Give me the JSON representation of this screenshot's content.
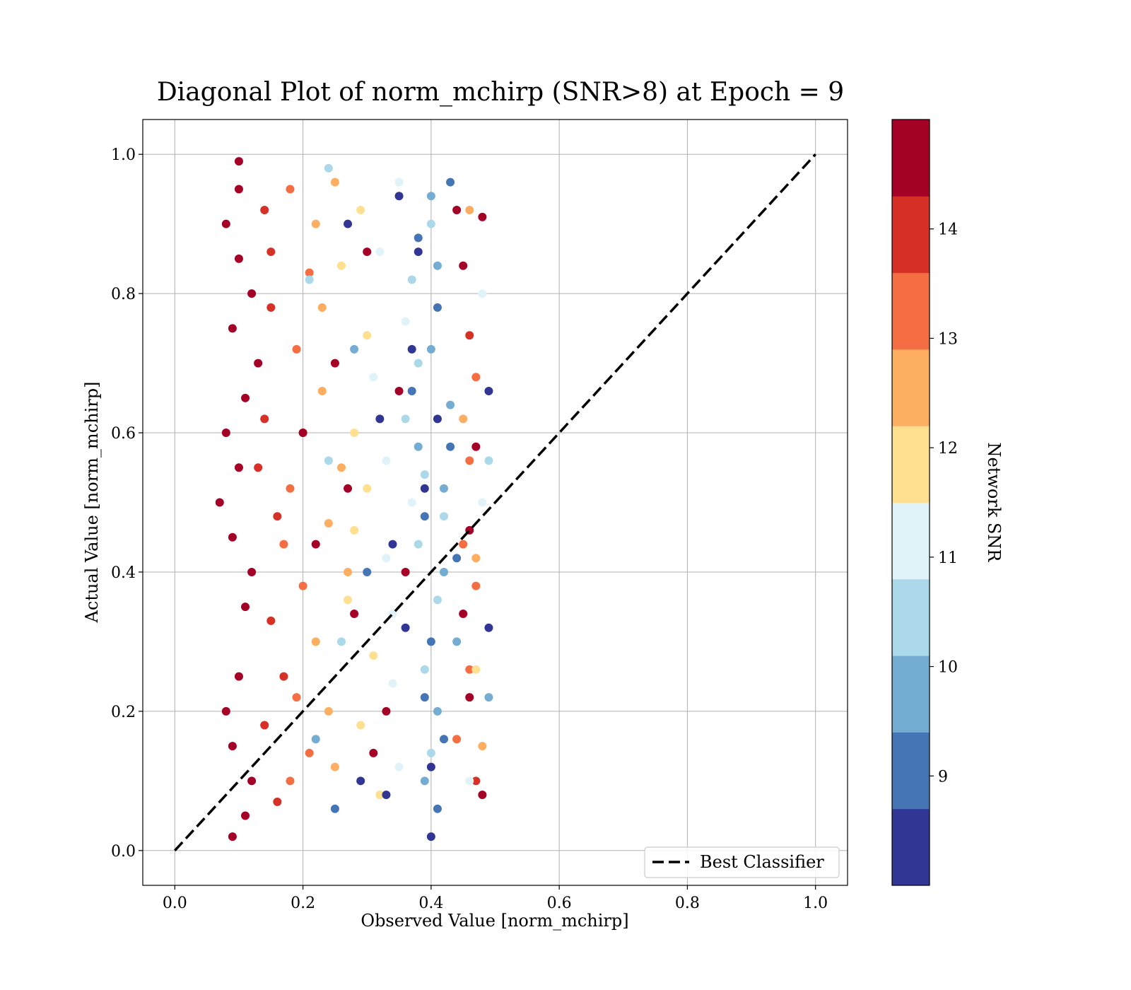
{
  "chart_data": {
    "type": "scatter",
    "title": "Diagonal Plot of norm_mchirp (SNR>8) at Epoch = 9",
    "xlabel": "Observed Value [norm_mchirp]",
    "ylabel": "Actual Value [norm_mchirp]",
    "xlim": [
      -0.05,
      1.05
    ],
    "ylim": [
      -0.05,
      1.05
    ],
    "x_ticks": [
      0.0,
      0.2,
      0.4,
      0.6,
      0.8,
      1.0
    ],
    "y_ticks": [
      0.0,
      0.2,
      0.4,
      0.6,
      0.8,
      1.0
    ],
    "x_tick_labels": [
      "0.0",
      "0.2",
      "0.4",
      "0.6",
      "0.8",
      "1.0"
    ],
    "y_tick_labels": [
      "0.0",
      "0.2",
      "0.4",
      "0.6",
      "0.8",
      "1.0"
    ],
    "grid": true,
    "legend": {
      "placement": "lower-right",
      "entries": [
        "Best Classifier"
      ]
    },
    "reference_line": {
      "name": "Best Classifier",
      "style": "dashed",
      "color": "#000000",
      "x": [
        0.0,
        1.0
      ],
      "y": [
        0.0,
        1.0
      ]
    },
    "colorbar": {
      "label": "Network SNR",
      "range": [
        8.0,
        15.0
      ],
      "ticks": [
        9,
        10,
        11,
        12,
        13,
        14
      ],
      "tick_labels": [
        "9",
        "10",
        "11",
        "12",
        "13",
        "14"
      ],
      "bins": [
        {
          "from": 8.0,
          "to": 8.7,
          "color": "#313695"
        },
        {
          "from": 8.7,
          "to": 9.4,
          "color": "#4575b4"
        },
        {
          "from": 9.4,
          "to": 10.1,
          "color": "#74add1"
        },
        {
          "from": 10.1,
          "to": 10.8,
          "color": "#abd9e9"
        },
        {
          "from": 10.8,
          "to": 11.5,
          "color": "#e0f3f8"
        },
        {
          "from": 11.5,
          "to": 12.2,
          "color": "#fee090"
        },
        {
          "from": 12.2,
          "to": 12.9,
          "color": "#fdae61"
        },
        {
          "from": 12.9,
          "to": 13.6,
          "color": "#f46d43"
        },
        {
          "from": 13.6,
          "to": 14.3,
          "color": "#d73027"
        },
        {
          "from": 14.3,
          "to": 15.0,
          "color": "#a50026"
        }
      ]
    },
    "scatter_points": [
      [
        0.1,
        0.95,
        15.0
      ],
      [
        0.1,
        0.85,
        15.0
      ],
      [
        0.09,
        0.75,
        15.0
      ],
      [
        0.11,
        0.65,
        15.0
      ],
      [
        0.1,
        0.55,
        15.0
      ],
      [
        0.09,
        0.45,
        15.0
      ],
      [
        0.11,
        0.35,
        15.0
      ],
      [
        0.1,
        0.25,
        15.0
      ],
      [
        0.09,
        0.15,
        15.0
      ],
      [
        0.11,
        0.05,
        15.0
      ],
      [
        0.08,
        0.9,
        15.0
      ],
      [
        0.12,
        0.8,
        15.0
      ],
      [
        0.08,
        0.6,
        15.0
      ],
      [
        0.12,
        0.4,
        15.0
      ],
      [
        0.08,
        0.2,
        15.0
      ],
      [
        0.12,
        0.1,
        14.8
      ],
      [
        0.09,
        0.02,
        14.9
      ],
      [
        0.1,
        0.99,
        14.7
      ],
      [
        0.07,
        0.5,
        15.0
      ],
      [
        0.13,
        0.7,
        14.6
      ],
      [
        0.14,
        0.92,
        14.0
      ],
      [
        0.15,
        0.78,
        14.0
      ],
      [
        0.14,
        0.62,
        13.9
      ],
      [
        0.16,
        0.48,
        14.1
      ],
      [
        0.15,
        0.33,
        14.0
      ],
      [
        0.14,
        0.18,
        13.8
      ],
      [
        0.16,
        0.07,
        14.0
      ],
      [
        0.13,
        0.55,
        14.2
      ],
      [
        0.15,
        0.86,
        13.9
      ],
      [
        0.17,
        0.25,
        14.0
      ],
      [
        0.18,
        0.95,
        13.2
      ],
      [
        0.19,
        0.72,
        13.0
      ],
      [
        0.18,
        0.52,
        13.3
      ],
      [
        0.2,
        0.38,
        13.1
      ],
      [
        0.19,
        0.22,
        13.0
      ],
      [
        0.18,
        0.1,
        13.2
      ],
      [
        0.21,
        0.83,
        12.9
      ],
      [
        0.2,
        0.6,
        13.0
      ],
      [
        0.17,
        0.44,
        13.1
      ],
      [
        0.21,
        0.14,
        12.9
      ],
      [
        0.22,
        0.9,
        12.4
      ],
      [
        0.23,
        0.66,
        12.5
      ],
      [
        0.24,
        0.47,
        12.3
      ],
      [
        0.22,
        0.3,
        12.6
      ],
      [
        0.25,
        0.12,
        12.4
      ],
      [
        0.23,
        0.78,
        12.5
      ],
      [
        0.26,
        0.55,
        12.3
      ],
      [
        0.24,
        0.2,
        12.5
      ],
      [
        0.27,
        0.4,
        12.4
      ],
      [
        0.25,
        0.96,
        12.6
      ],
      [
        0.26,
        0.84,
        11.8
      ],
      [
        0.28,
        0.6,
        11.9
      ],
      [
        0.27,
        0.36,
        11.8
      ],
      [
        0.29,
        0.18,
        11.7
      ],
      [
        0.3,
        0.74,
        11.9
      ],
      [
        0.28,
        0.46,
        11.8
      ],
      [
        0.31,
        0.28,
        11.7
      ],
      [
        0.29,
        0.92,
        11.8
      ],
      [
        0.32,
        0.08,
        11.9
      ],
      [
        0.3,
        0.52,
        11.8
      ],
      [
        0.31,
        0.68,
        11.1
      ],
      [
        0.33,
        0.42,
        11.2
      ],
      [
        0.32,
        0.86,
        11.0
      ],
      [
        0.34,
        0.24,
        11.1
      ],
      [
        0.33,
        0.56,
        11.2
      ],
      [
        0.35,
        0.12,
        11.0
      ],
      [
        0.36,
        0.76,
        11.1
      ],
      [
        0.34,
        0.34,
        11.2
      ],
      [
        0.37,
        0.5,
        11.0
      ],
      [
        0.35,
        0.96,
        11.1
      ],
      [
        0.36,
        0.62,
        10.4
      ],
      [
        0.38,
        0.44,
        10.5
      ],
      [
        0.37,
        0.82,
        10.3
      ],
      [
        0.39,
        0.26,
        10.4
      ],
      [
        0.38,
        0.7,
        10.5
      ],
      [
        0.4,
        0.14,
        10.4
      ],
      [
        0.39,
        0.54,
        10.3
      ],
      [
        0.41,
        0.36,
        10.5
      ],
      [
        0.4,
        0.9,
        10.4
      ],
      [
        0.42,
        0.48,
        10.3
      ],
      [
        0.38,
        0.58,
        9.8
      ],
      [
        0.4,
        0.72,
        9.7
      ],
      [
        0.41,
        0.2,
        9.8
      ],
      [
        0.42,
        0.4,
        9.6
      ],
      [
        0.39,
        0.1,
        9.7
      ],
      [
        0.43,
        0.64,
        9.8
      ],
      [
        0.41,
        0.84,
        9.7
      ],
      [
        0.44,
        0.3,
        9.6
      ],
      [
        0.42,
        0.52,
        9.8
      ],
      [
        0.4,
        0.94,
        9.7
      ],
      [
        0.37,
        0.66,
        9.0
      ],
      [
        0.39,
        0.48,
        9.1
      ],
      [
        0.41,
        0.78,
        8.9
      ],
      [
        0.4,
        0.3,
        9.0
      ],
      [
        0.42,
        0.16,
        9.1
      ],
      [
        0.38,
        0.88,
        9.0
      ],
      [
        0.43,
        0.58,
        8.9
      ],
      [
        0.41,
        0.06,
        9.0
      ],
      [
        0.44,
        0.42,
        9.1
      ],
      [
        0.39,
        0.22,
        9.0
      ],
      [
        0.35,
        0.94,
        8.3
      ],
      [
        0.37,
        0.72,
        8.2
      ],
      [
        0.39,
        0.52,
        8.4
      ],
      [
        0.36,
        0.32,
        8.3
      ],
      [
        0.4,
        0.12,
        8.2
      ],
      [
        0.38,
        0.86,
        8.3
      ],
      [
        0.41,
        0.62,
        8.4
      ],
      [
        0.34,
        0.44,
        8.3
      ],
      [
        0.4,
        0.02,
        8.2
      ],
      [
        0.33,
        0.08,
        8.3
      ],
      [
        0.44,
        0.92,
        14.5
      ],
      [
        0.45,
        0.84,
        14.3
      ],
      [
        0.46,
        0.74,
        14.2
      ],
      [
        0.47,
        0.58,
        14.4
      ],
      [
        0.46,
        0.46,
        14.6
      ],
      [
        0.45,
        0.34,
        14.3
      ],
      [
        0.46,
        0.22,
        14.5
      ],
      [
        0.47,
        0.1,
        14.2
      ],
      [
        0.48,
        0.08,
        14.8
      ],
      [
        0.48,
        0.91,
        14.7
      ],
      [
        0.47,
        0.68,
        13.4
      ],
      [
        0.46,
        0.56,
        13.2
      ],
      [
        0.45,
        0.44,
        13.5
      ],
      [
        0.47,
        0.38,
        13.3
      ],
      [
        0.46,
        0.26,
        13.4
      ],
      [
        0.44,
        0.16,
        13.2
      ],
      [
        0.45,
        0.62,
        12.7
      ],
      [
        0.46,
        0.92,
        12.6
      ],
      [
        0.47,
        0.42,
        12.6
      ],
      [
        0.48,
        0.15,
        12.7
      ],
      [
        0.49,
        0.66,
        8.2
      ],
      [
        0.49,
        0.32,
        8.5
      ],
      [
        0.49,
        0.56,
        10.6
      ],
      [
        0.49,
        0.22,
        9.7
      ],
      [
        0.48,
        0.8,
        10.9
      ],
      [
        0.48,
        0.5,
        11.2
      ],
      [
        0.47,
        0.26,
        11.5
      ],
      [
        0.46,
        0.1,
        11.4
      ],
      [
        0.43,
        0.96,
        9.2
      ],
      [
        0.24,
        0.98,
        10.2
      ],
      [
        0.2,
        0.6,
        14.6
      ],
      [
        0.22,
        0.44,
        14.4
      ],
      [
        0.25,
        0.7,
        14.5
      ],
      [
        0.28,
        0.34,
        14.6
      ],
      [
        0.3,
        0.86,
        14.3
      ],
      [
        0.33,
        0.2,
        14.5
      ],
      [
        0.36,
        0.4,
        14.6
      ],
      [
        0.27,
        0.52,
        14.4
      ],
      [
        0.31,
        0.14,
        14.5
      ],
      [
        0.35,
        0.66,
        14.3
      ],
      [
        0.21,
        0.82,
        10.2
      ],
      [
        0.24,
        0.56,
        10.6
      ],
      [
        0.26,
        0.3,
        10.4
      ],
      [
        0.28,
        0.72,
        9.8
      ],
      [
        0.3,
        0.4,
        9.3
      ],
      [
        0.32,
        0.62,
        8.6
      ],
      [
        0.29,
        0.1,
        8.4
      ],
      [
        0.25,
        0.06,
        9.0
      ],
      [
        0.22,
        0.16,
        10.0
      ],
      [
        0.27,
        0.9,
        8.5
      ]
    ]
  }
}
